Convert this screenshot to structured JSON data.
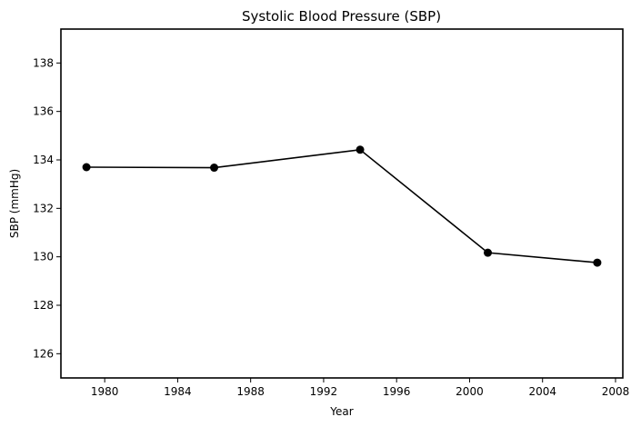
{
  "chart_data": {
    "type": "line",
    "title": "Systolic Blood Pressure (SBP)",
    "xlabel": "Year",
    "ylabel": "SBP (mmHg)",
    "xlim": [
      1977.6,
      2008.4
    ],
    "ylim": [
      125.0,
      139.4
    ],
    "xticks": [
      1980,
      1984,
      1988,
      1992,
      1996,
      2000,
      2004,
      2008
    ],
    "yticks": [
      126,
      128,
      130,
      132,
      134,
      136,
      138
    ],
    "grid": false,
    "legend": "none",
    "series": [
      {
        "x": [
          1979,
          1986,
          1994,
          2001,
          2007
        ],
        "y": [
          133.7,
          133.68,
          134.42,
          130.17,
          129.76
        ],
        "color": "#000000",
        "marker": "circle"
      }
    ]
  }
}
